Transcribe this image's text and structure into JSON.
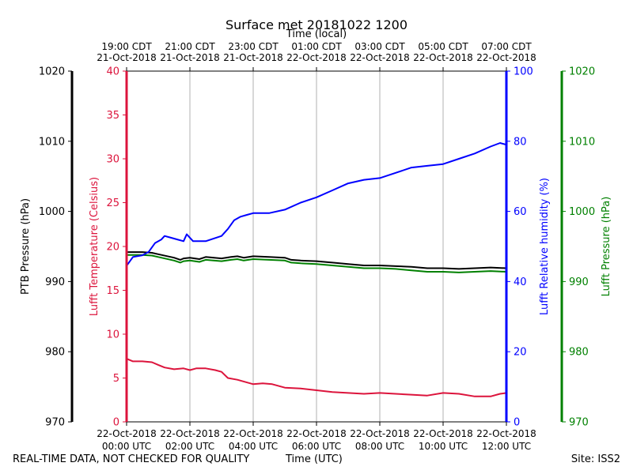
{
  "chart_data": {
    "type": "line",
    "title": "Surface met 20181022 1200",
    "top_axis_label": "Time (local)",
    "xlabel": "Time (UTC)",
    "x_unit": "hours since 22-Oct-2018 00:00 UTC",
    "xlim": [
      0,
      12
    ],
    "x_ticks_bottom": [
      {
        "x": 0,
        "line1": "22-Oct-2018",
        "line2": "00:00 UTC"
      },
      {
        "x": 2,
        "line1": "22-Oct-2018",
        "line2": "02:00 UTC"
      },
      {
        "x": 4,
        "line1": "22-Oct-2018",
        "line2": "04:00 UTC"
      },
      {
        "x": 6,
        "line1": "22-Oct-2018",
        "line2": "06:00 UTC"
      },
      {
        "x": 8,
        "line1": "22-Oct-2018",
        "line2": "08:00 UTC"
      },
      {
        "x": 10,
        "line1": "22-Oct-2018",
        "line2": "10:00 UTC"
      },
      {
        "x": 12,
        "line1": "22-Oct-2018",
        "line2": "12:00 UTC"
      }
    ],
    "x_ticks_top": [
      {
        "x": 0,
        "line1": "19:00 CDT",
        "line2": "21-Oct-2018"
      },
      {
        "x": 2,
        "line1": "21:00 CDT",
        "line2": "21-Oct-2018"
      },
      {
        "x": 4,
        "line1": "23:00 CDT",
        "line2": "21-Oct-2018"
      },
      {
        "x": 6,
        "line1": "01:00 CDT",
        "line2": "22-Oct-2018"
      },
      {
        "x": 8,
        "line1": "03:00 CDT",
        "line2": "22-Oct-2018"
      },
      {
        "x": 10,
        "line1": "05:00 CDT",
        "line2": "22-Oct-2018"
      },
      {
        "x": 12,
        "line1": "07:00 CDT",
        "line2": "22-Oct-2018"
      }
    ],
    "grid": "vertical",
    "axes": {
      "ptb_pressure": {
        "label": "PTB Pressure (hPa)",
        "range": [
          970,
          1020
        ],
        "ticks": [
          970,
          980,
          990,
          1000,
          1010,
          1020
        ],
        "color": "#000000"
      },
      "temperature": {
        "label": "Lufft Temperature (Celsius)",
        "range": [
          0,
          40
        ],
        "ticks": [
          0,
          5,
          10,
          15,
          20,
          25,
          30,
          35,
          40
        ],
        "color": "#dc143c"
      },
      "humidity": {
        "label": "Lufft Relative humidity (%)",
        "range": [
          0,
          100
        ],
        "ticks": [
          0,
          20,
          40,
          60,
          80,
          100
        ],
        "color": "#0000ff"
      },
      "lufft_pressure": {
        "label": "Lufft Pressure (hPa)",
        "range": [
          970,
          1020
        ],
        "ticks": [
          970,
          980,
          990,
          1000,
          1010,
          1020
        ],
        "color": "#008000"
      }
    },
    "series": [
      {
        "name": "PTB Pressure",
        "axis": "ptb_pressure",
        "color": "#000000",
        "x": [
          0,
          0.5,
          0.8,
          1.0,
          1.5,
          1.7,
          1.8,
          2.0,
          2.3,
          2.5,
          3.0,
          3.3,
          3.5,
          3.7,
          4.0,
          4.5,
          5.0,
          5.2,
          5.5,
          6.0,
          6.5,
          7.0,
          7.5,
          8.0,
          8.5,
          9.0,
          9.5,
          10.0,
          10.5,
          11.0,
          11.5,
          12.0
        ],
        "y": [
          994.2,
          994.2,
          994.1,
          993.9,
          993.4,
          993.1,
          993.3,
          993.4,
          993.2,
          993.5,
          993.3,
          993.5,
          993.6,
          993.4,
          993.6,
          993.5,
          993.4,
          993.1,
          993.0,
          992.9,
          992.7,
          992.5,
          992.3,
          992.3,
          992.2,
          992.1,
          991.9,
          991.9,
          991.8,
          991.9,
          992.0,
          991.9
        ]
      },
      {
        "name": "Lufft Pressure",
        "axis": "lufft_pressure",
        "color": "#008000",
        "x": [
          0,
          0.5,
          0.8,
          1.0,
          1.5,
          1.7,
          1.8,
          2.0,
          2.3,
          2.5,
          3.0,
          3.3,
          3.5,
          3.7,
          4.0,
          4.5,
          5.0,
          5.2,
          5.5,
          6.0,
          6.5,
          7.0,
          7.5,
          8.0,
          8.5,
          9.0,
          9.5,
          10.0,
          10.5,
          11.0,
          11.5,
          12.0
        ],
        "y": [
          993.8,
          993.8,
          993.7,
          993.5,
          993.0,
          992.7,
          992.9,
          993.0,
          992.8,
          993.1,
          992.9,
          993.1,
          993.2,
          993.0,
          993.2,
          993.1,
          993.0,
          992.7,
          992.6,
          992.5,
          992.3,
          992.1,
          991.9,
          991.9,
          991.8,
          991.6,
          991.4,
          991.4,
          991.3,
          991.4,
          991.5,
          991.4
        ]
      },
      {
        "name": "Lufft Temperature",
        "axis": "temperature",
        "color": "#dc143c",
        "x": [
          0,
          0.2,
          0.5,
          0.8,
          1.0,
          1.2,
          1.5,
          1.8,
          2.0,
          2.2,
          2.5,
          2.8,
          3.0,
          3.2,
          3.5,
          3.8,
          4.0,
          4.3,
          4.6,
          5.0,
          5.5,
          6.0,
          6.5,
          7.0,
          7.5,
          8.0,
          8.5,
          9.0,
          9.5,
          10.0,
          10.5,
          11.0,
          11.5,
          11.8,
          12.0
        ],
        "y": [
          7.2,
          6.9,
          6.9,
          6.8,
          6.5,
          6.2,
          6.0,
          6.1,
          5.9,
          6.1,
          6.1,
          5.9,
          5.7,
          5.0,
          4.8,
          4.5,
          4.3,
          4.4,
          4.3,
          3.9,
          3.8,
          3.6,
          3.4,
          3.3,
          3.2,
          3.3,
          3.2,
          3.1,
          3.0,
          3.3,
          3.2,
          2.9,
          2.9,
          3.2,
          3.3
        ]
      },
      {
        "name": "Lufft Relative humidity",
        "axis": "humidity",
        "color": "#0000ff",
        "x": [
          0,
          0.2,
          0.5,
          0.7,
          0.9,
          1.1,
          1.2,
          1.4,
          1.6,
          1.8,
          1.9,
          2.0,
          2.1,
          2.5,
          3.0,
          3.2,
          3.4,
          3.6,
          3.8,
          4.0,
          4.5,
          5.0,
          5.5,
          6.0,
          6.5,
          7.0,
          7.5,
          8.0,
          8.5,
          9.0,
          9.5,
          10.0,
          10.5,
          11.0,
          11.5,
          11.8,
          12.0
        ],
        "y": [
          44.5,
          47.0,
          47.5,
          48.5,
          51.0,
          52.0,
          53.0,
          52.5,
          52.0,
          51.5,
          53.5,
          52.5,
          51.5,
          51.5,
          53.0,
          55.0,
          57.5,
          58.5,
          59.0,
          59.5,
          59.5,
          60.5,
          62.5,
          64.0,
          66.0,
          68.0,
          69.0,
          69.5,
          71.0,
          72.5,
          73.0,
          73.5,
          75.0,
          76.5,
          78.5,
          79.5,
          79.0
        ]
      }
    ]
  },
  "footer": {
    "left": "REAL-TIME DATA, NOT CHECKED FOR QUALITY",
    "center": "Time (UTC)",
    "right": "Site: ISS2"
  }
}
